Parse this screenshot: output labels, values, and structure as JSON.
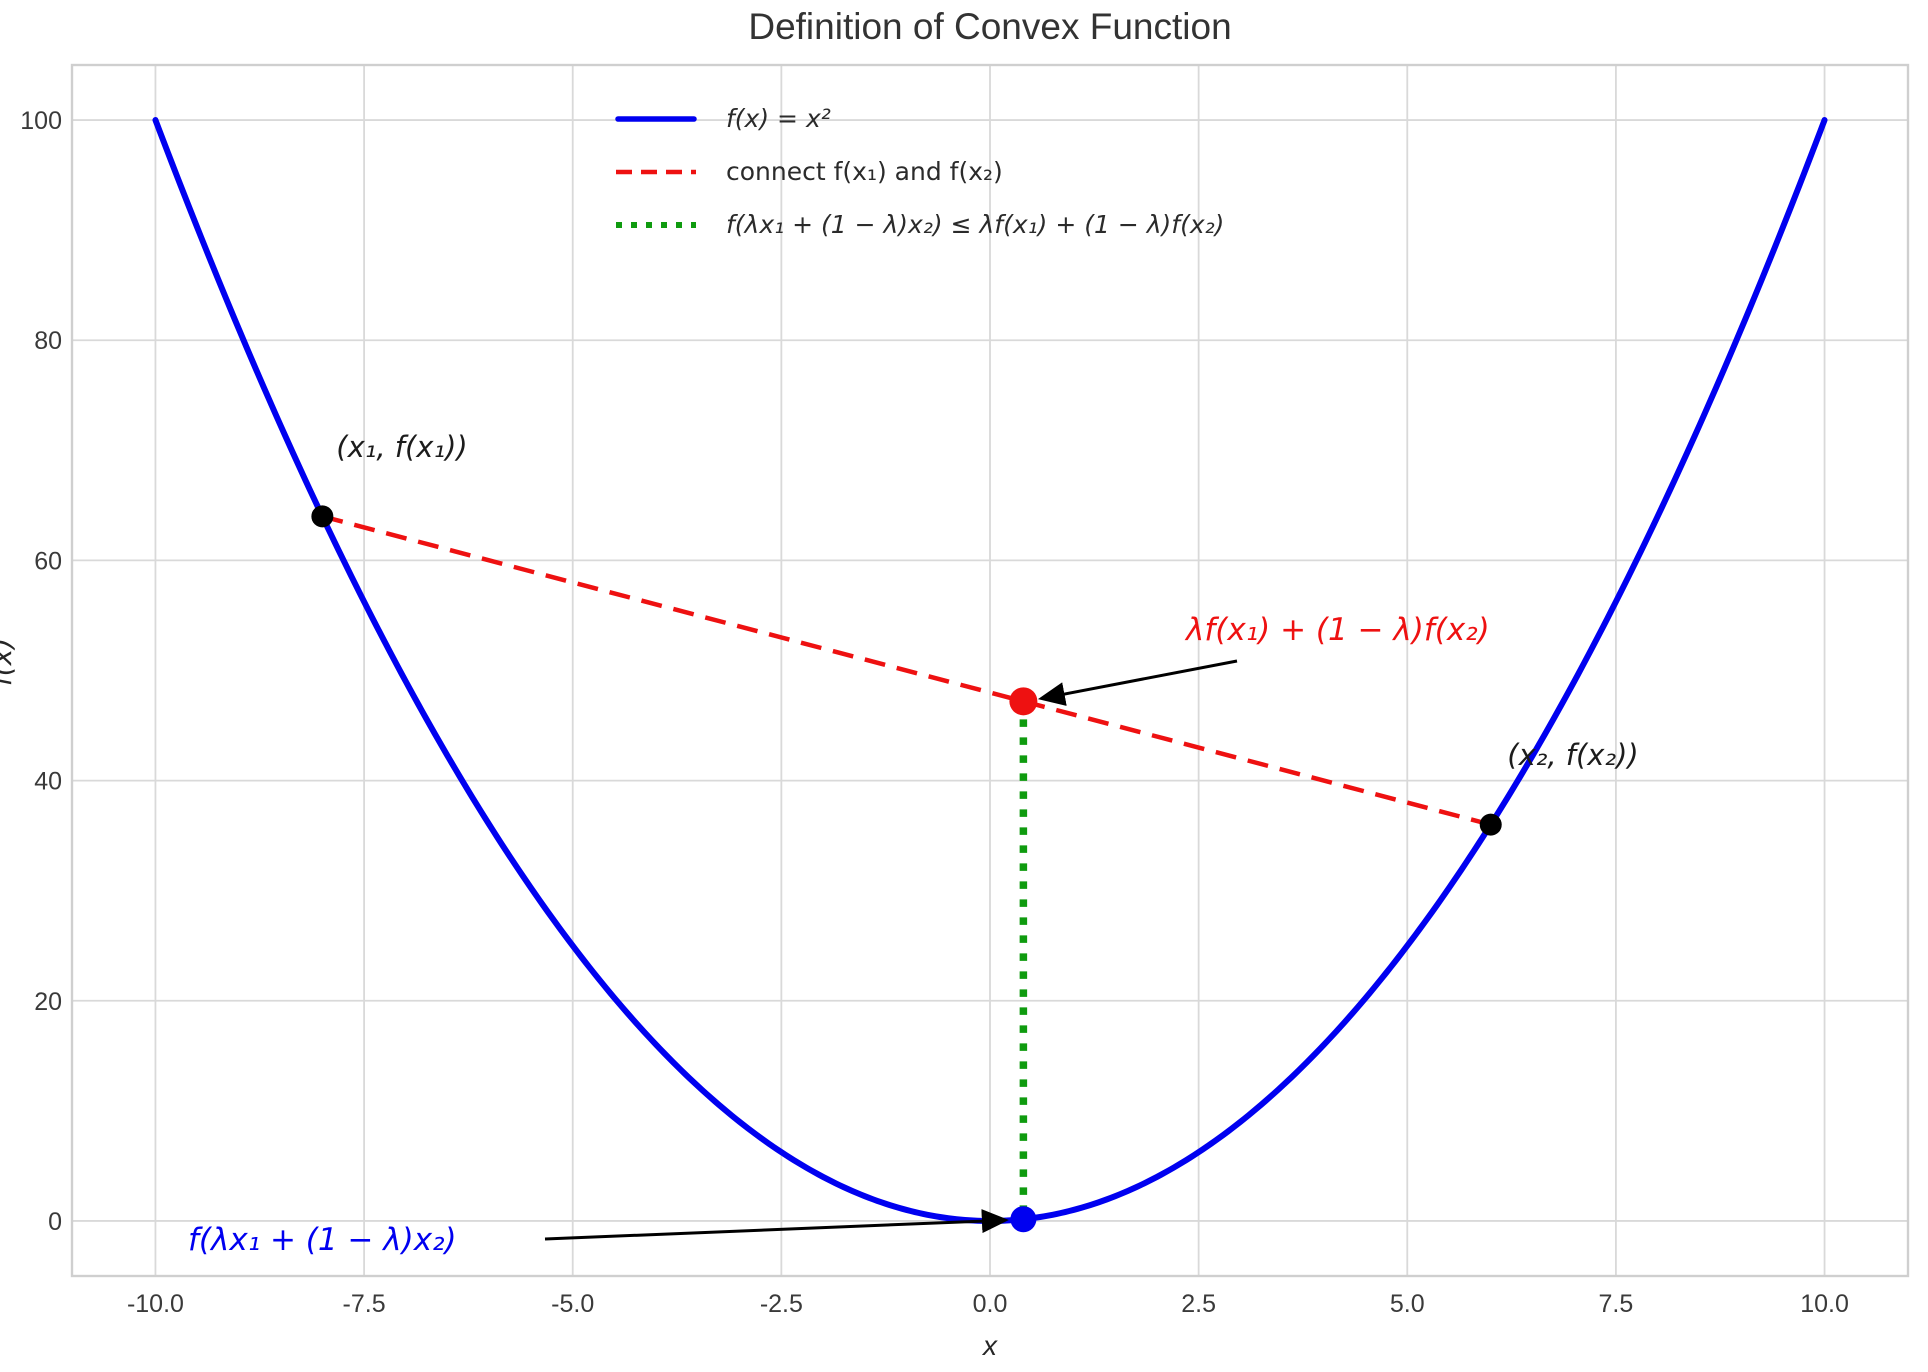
{
  "chart_data": {
    "type": "line",
    "title": "Definition of Convex Function",
    "xlabel": "x",
    "ylabel": "f(x)",
    "xlim": [
      -11,
      11
    ],
    "ylim": [
      -5,
      105
    ],
    "grid": true,
    "grid_color": "#d9d9d9",
    "spine_color": "#cfcfcf",
    "x_tick_values": [
      -10,
      -7.5,
      -5,
      -2.5,
      0,
      2.5,
      5,
      7.5,
      10
    ],
    "x_tick_labels": [
      "-10.0",
      "-7.5",
      "-5.0",
      "-2.5",
      "0.0",
      "2.5",
      "5.0",
      "7.5",
      "10.0"
    ],
    "y_tick_values": [
      0,
      20,
      40,
      60,
      80,
      100
    ],
    "y_tick_labels": [
      "0",
      "20",
      "40",
      "60",
      "80",
      "100"
    ],
    "lambda": 0.4,
    "series": [
      {
        "name": "f(x) = x²",
        "type": "curve",
        "expr": "x^2",
        "x_min": -10,
        "x_max": 10,
        "color": "#0000f0",
        "style": "solid",
        "width": 6
      },
      {
        "name": "connect f(x₁) and f(x₂)",
        "type": "segment",
        "points": [
          [
            -8,
            64
          ],
          [
            6,
            36
          ]
        ],
        "color": "#ee1111",
        "style": "dashed",
        "width": 4.5
      },
      {
        "name": "f(λx₁ + (1 − λ)x₂) ≤ λf(x₁) + (1 − λ)f(x₂)",
        "type": "segment",
        "points": [
          [
            0.4,
            47.2
          ],
          [
            0.4,
            0.16
          ]
        ],
        "color": "#0f9b0f",
        "style": "dotted",
        "width": 7.5
      }
    ],
    "markers": [
      {
        "x": -8,
        "y": 64,
        "color": "#000000",
        "radius": 11,
        "label": "(x₁, f(x₁))"
      },
      {
        "x": 6,
        "y": 36,
        "color": "#000000",
        "radius": 11,
        "label": "(x₂, f(x₂))"
      },
      {
        "x": 0.4,
        "y": 47.2,
        "color": "#ee1111",
        "radius": 14,
        "label": "λf(x₁) + (1 − λ)f(x₂)"
      },
      {
        "x": 0.4,
        "y": 0.16,
        "color": "#0000f0",
        "radius": 13,
        "label": "f(λx₁ + (1 − λ)x₂)"
      }
    ],
    "legend": {
      "position": "upper-center-left",
      "frame": false
    }
  }
}
